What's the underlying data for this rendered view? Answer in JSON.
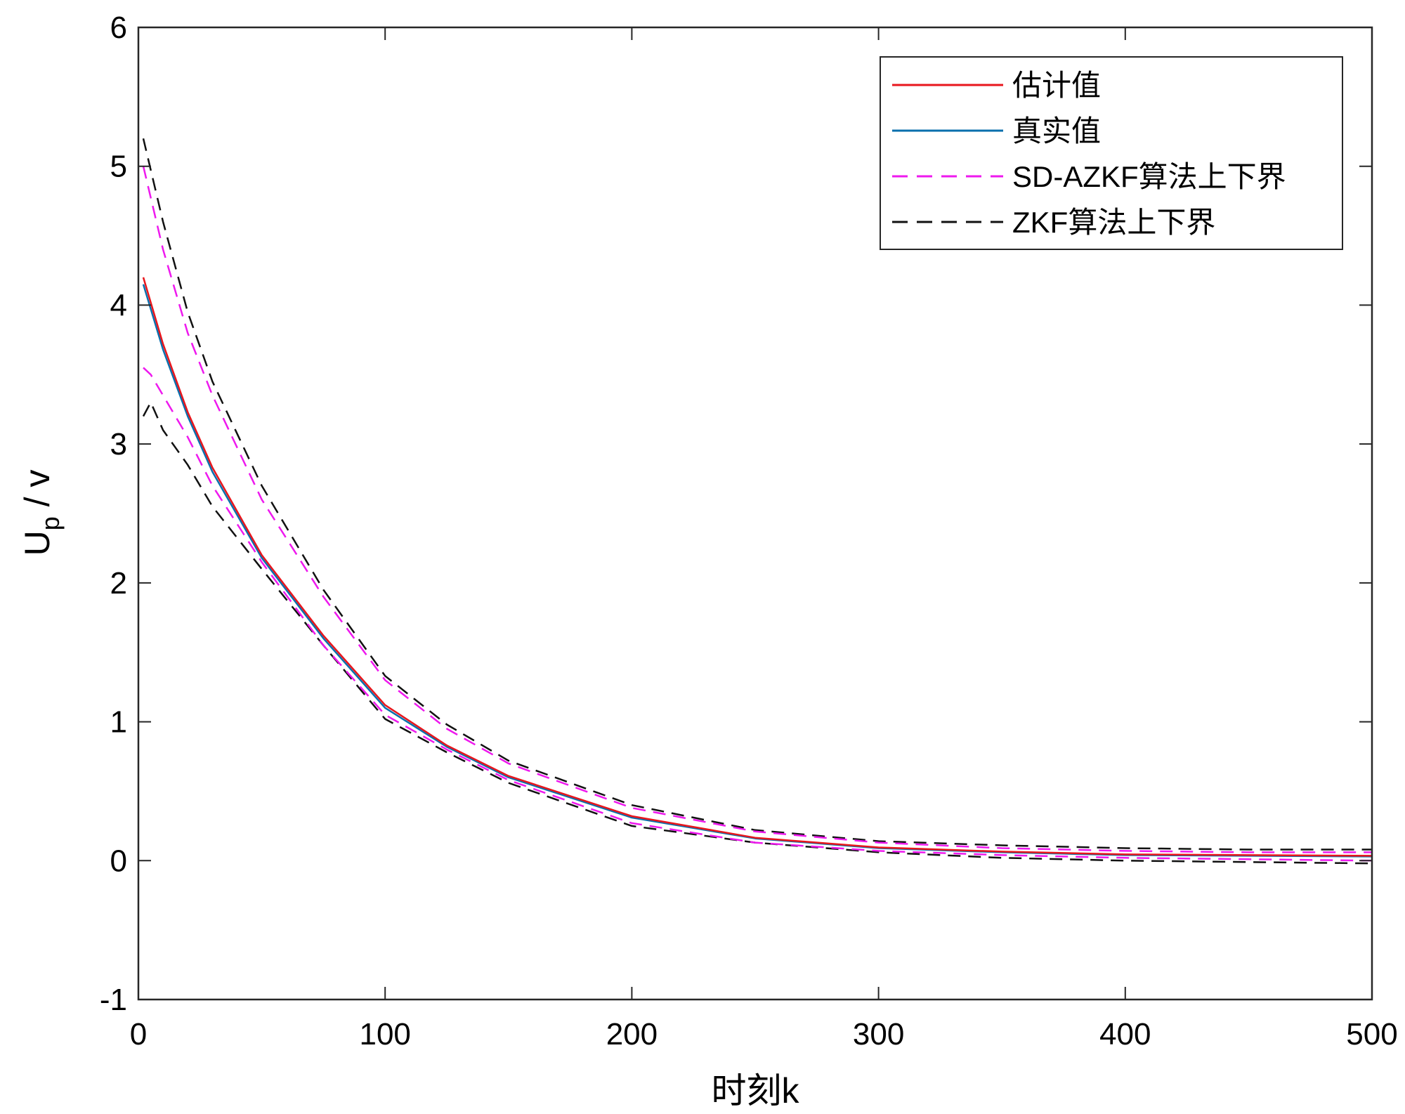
{
  "chart_data": {
    "type": "line",
    "xlabel": "时刻k",
    "ylabel": {
      "main": "U",
      "subscript": "p",
      "unit": " / v"
    },
    "xlim": [
      0,
      500
    ],
    "ylim": [
      -1,
      6
    ],
    "xticks": [
      0,
      100,
      200,
      300,
      400,
      500
    ],
    "yticks": [
      -1,
      0,
      1,
      2,
      3,
      4,
      5,
      6
    ],
    "grid": false,
    "legend_position": "top-right",
    "legend": [
      {
        "label": "估计值",
        "color": "#e8161c",
        "dash": "solid"
      },
      {
        "label": "真实值",
        "color": "#0a6fad",
        "dash": "solid"
      },
      {
        "label": "SD-AZKF算法上下界",
        "color": "#ee19ee",
        "dash": "dashed"
      },
      {
        "label": "ZKF算法上下界",
        "color": "#111111",
        "dash": "dashed"
      }
    ],
    "series": [
      {
        "name": "ZKF算法上下界",
        "color": "#111111",
        "dash": "dashed",
        "x": [
          2,
          10,
          20,
          30,
          50,
          75,
          100,
          125,
          150,
          200,
          250,
          300,
          350,
          400,
          450,
          500
        ],
        "y": [
          5.2,
          4.6,
          3.95,
          3.45,
          2.7,
          1.95,
          1.33,
          0.98,
          0.72,
          0.4,
          0.22,
          0.14,
          0.11,
          0.09,
          0.08,
          0.08
        ]
      },
      {
        "name": "ZKF算法上下界",
        "color": "#111111",
        "dash": "dashed",
        "x": [
          2,
          5,
          10,
          20,
          30,
          50,
          75,
          100,
          125,
          150,
          200,
          250,
          300,
          350,
          400,
          450,
          500
        ],
        "y": [
          3.2,
          3.3,
          3.1,
          2.85,
          2.55,
          2.1,
          1.55,
          1.02,
          0.78,
          0.56,
          0.25,
          0.13,
          0.06,
          0.02,
          0.0,
          -0.01,
          -0.02
        ]
      },
      {
        "name": "SD-AZKF算法上下界",
        "color": "#ee19ee",
        "dash": "dashed",
        "x": [
          2,
          10,
          20,
          30,
          50,
          75,
          100,
          125,
          150,
          200,
          250,
          300,
          350,
          400,
          450,
          500
        ],
        "y": [
          5.0,
          4.4,
          3.8,
          3.35,
          2.6,
          1.9,
          1.3,
          0.95,
          0.7,
          0.38,
          0.21,
          0.13,
          0.09,
          0.07,
          0.06,
          0.06
        ]
      },
      {
        "name": "SD-AZKF算法上下界",
        "color": "#ee19ee",
        "dash": "dashed",
        "x": [
          2,
          5,
          10,
          20,
          30,
          50,
          75,
          100,
          125,
          150,
          200,
          250,
          300,
          350,
          400,
          450,
          500
        ],
        "y": [
          3.55,
          3.5,
          3.35,
          3.05,
          2.7,
          2.15,
          1.55,
          1.05,
          0.8,
          0.58,
          0.27,
          0.13,
          0.07,
          0.04,
          0.02,
          0.01,
          0.0
        ]
      },
      {
        "name": "真实值",
        "color": "#0a6fad",
        "dash": "solid",
        "x": [
          2,
          10,
          20,
          30,
          50,
          75,
          100,
          125,
          150,
          200,
          250,
          300,
          350,
          400,
          450,
          500
        ],
        "y": [
          4.15,
          3.68,
          3.2,
          2.8,
          2.18,
          1.6,
          1.1,
          0.82,
          0.6,
          0.31,
          0.16,
          0.09,
          0.06,
          0.04,
          0.035,
          0.03
        ]
      },
      {
        "name": "估计值",
        "color": "#e8161c",
        "dash": "solid",
        "x": [
          2,
          10,
          20,
          30,
          50,
          75,
          100,
          125,
          150,
          200,
          250,
          300,
          350,
          400,
          450,
          500
        ],
        "y": [
          4.2,
          3.72,
          3.23,
          2.83,
          2.2,
          1.62,
          1.12,
          0.83,
          0.61,
          0.32,
          0.165,
          0.095,
          0.065,
          0.045,
          0.04,
          0.035
        ]
      }
    ]
  }
}
